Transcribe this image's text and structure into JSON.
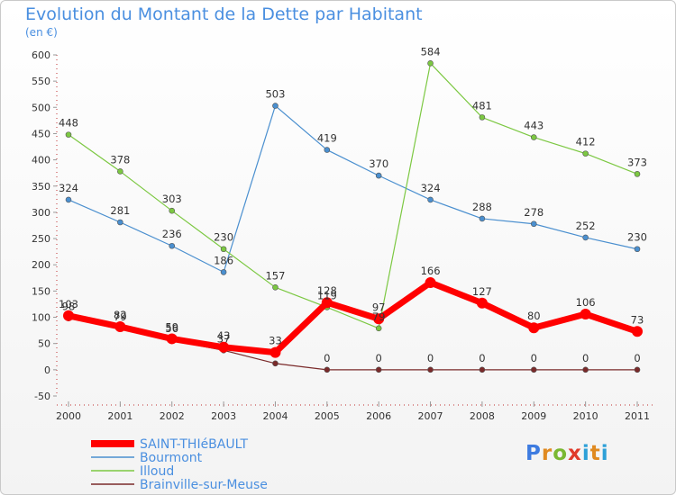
{
  "header": {
    "title": "Evolution du Montant de la Dette par Habitant",
    "subtitle": "(en €)"
  },
  "logo": {
    "text": "Proxiti"
  },
  "chart_data": {
    "type": "line",
    "title": "Evolution du Montant de la Dette par Habitant",
    "ylabel": "(en €)",
    "xlabel": "",
    "categories": [
      "2000",
      "2001",
      "2002",
      "2003",
      "2004",
      "2005",
      "2006",
      "2007",
      "2008",
      "2009",
      "2010",
      "2011"
    ],
    "ylim": [
      -50,
      600
    ],
    "yticks": [
      -50,
      0,
      50,
      100,
      150,
      200,
      250,
      300,
      350,
      400,
      450,
      500,
      550,
      600
    ],
    "grid": false,
    "legend_position": "bottom-left",
    "series": [
      {
        "name": "SAINT-THIéBAULT",
        "color": "#ff0000",
        "values": [
          103,
          82,
          59,
          43,
          33,
          128,
          97,
          166,
          127,
          80,
          106,
          73
        ]
      },
      {
        "name": "Bourmont",
        "color": "#4a8fcf",
        "values": [
          324,
          281,
          236,
          186,
          503,
          419,
          370,
          324,
          288,
          278,
          252,
          230
        ]
      },
      {
        "name": "Illoud",
        "color": "#7cc842",
        "values": [
          448,
          378,
          303,
          230,
          157,
          119,
          79,
          584,
          481,
          443,
          412,
          373
        ]
      },
      {
        "name": "Brainville-sur-Meuse",
        "color": "#7a2a2a",
        "values": [
          98,
          79,
          56,
          37,
          12,
          0,
          0,
          0,
          0,
          0,
          0,
          0
        ]
      }
    ],
    "data_labels": [
      {
        "series": 0,
        "labels": [
          "103",
          "82",
          "59",
          "43",
          "33",
          "128",
          "97",
          "166",
          "127",
          "80",
          "106",
          "73"
        ]
      },
      {
        "series": 1,
        "labels": [
          "324",
          "281",
          "236",
          "186",
          "503",
          "419",
          "370",
          "324",
          "288",
          "278",
          "252",
          "230"
        ]
      },
      {
        "series": 2,
        "labels": [
          "448",
          "378",
          "303",
          "230",
          "157",
          "119",
          "79",
          "584",
          "481",
          "443",
          "412",
          "373"
        ]
      },
      {
        "series": 3,
        "labels": [
          "98",
          "79",
          "56",
          "37",
          "",
          "0",
          "0",
          "0",
          "0",
          "0",
          "0",
          "0"
        ]
      }
    ]
  }
}
